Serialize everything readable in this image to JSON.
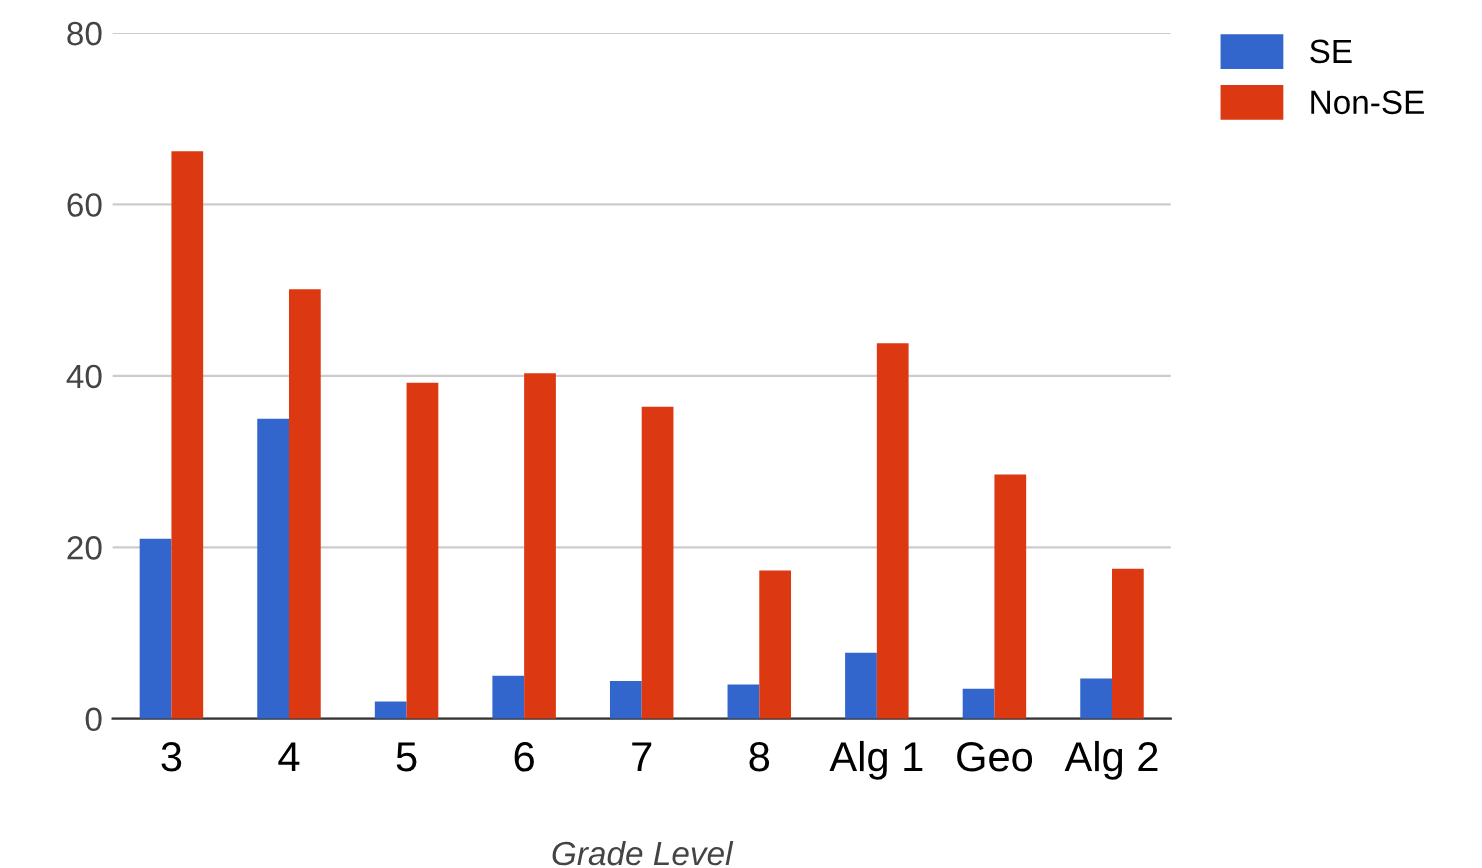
{
  "chart_data": {
    "type": "bar",
    "xlabel": "Grade Level",
    "categories": [
      "3",
      "4",
      "5",
      "6",
      "7",
      "8",
      "Alg 1",
      "Geo",
      "Alg 2"
    ],
    "series": [
      {
        "name": "SE",
        "color": "#3366cc",
        "values": [
          21,
          35,
          2,
          5,
          4.4,
          4,
          7.7,
          3.5,
          4.7
        ]
      },
      {
        "name": "Non-SE",
        "color": "#dc3912",
        "values": [
          66.2,
          50.1,
          39.2,
          40.3,
          36.4,
          17.3,
          43.8,
          28.5,
          17.5
        ]
      }
    ],
    "ylim": [
      0,
      80
    ],
    "yticks": [
      0,
      20,
      40,
      60,
      80
    ],
    "grid": "y",
    "legend": "top right"
  }
}
